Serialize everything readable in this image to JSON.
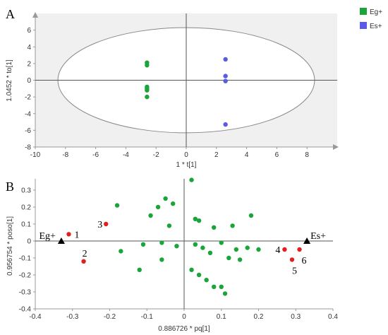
{
  "chart_data": [
    {
      "type": "scatter",
      "panel_label": "A",
      "xlabel": "1 * t[1]",
      "ylabel": "1.0452 * to[1]",
      "xlim": [
        -10,
        10
      ],
      "ylim": [
        -8,
        8
      ],
      "xticks": [
        "-10",
        "-8",
        "-6",
        "-4",
        "-2",
        "0",
        "2",
        "4",
        "6",
        "8"
      ],
      "yticks": [
        "6",
        "4",
        "2",
        "0",
        "-2",
        "-4",
        "-6",
        "-8"
      ],
      "ellipse": {
        "rx": 8.5,
        "ry": 6.3
      },
      "legend_position": "top-right",
      "series": [
        {
          "name": "Eg+",
          "color": "#1aa53a",
          "points": [
            [
              -2.6,
              2.1
            ],
            [
              -2.6,
              1.8
            ],
            [
              -2.6,
              -0.8
            ],
            [
              -2.6,
              -1.0
            ],
            [
              -2.6,
              -1.2
            ],
            [
              -2.6,
              -2.0
            ]
          ]
        },
        {
          "name": "Es+",
          "color": "#5a5ae6",
          "points": [
            [
              2.6,
              2.5
            ],
            [
              2.6,
              0.5
            ],
            [
              2.6,
              -0.1
            ],
            [
              2.6,
              -5.3
            ]
          ]
        }
      ]
    },
    {
      "type": "scatter",
      "panel_label": "B",
      "xlabel": "0.886726 * pq[1]",
      "ylabel": "0.956754 * poso[1]",
      "xlim": [
        -0.4,
        0.4
      ],
      "ylim": [
        -0.4,
        0.35
      ],
      "xticks": [
        "-0.4",
        "-0.3",
        "-0.2",
        "-0.1",
        "0",
        "0.1",
        "0.2",
        "0.3",
        "0.4"
      ],
      "yticks": [
        "0.3",
        "0.2",
        "0.1",
        "0",
        "-0.1",
        "-0.2",
        "-0.3",
        "-0.4"
      ],
      "anchors": [
        {
          "label": "Eg+",
          "x": -0.33,
          "y": 0.0
        },
        {
          "label": "Es+",
          "x": 0.33,
          "y": 0.0
        }
      ],
      "series": [
        {
          "color": "#1aa53a",
          "points": [
            [
              0.02,
              0.36
            ],
            [
              -0.18,
              0.21
            ],
            [
              -0.07,
              0.2
            ],
            [
              -0.05,
              0.25
            ],
            [
              -0.03,
              0.22
            ],
            [
              -0.09,
              0.15
            ],
            [
              -0.04,
              0.09
            ],
            [
              0.03,
              0.13
            ],
            [
              0.04,
              0.12
            ],
            [
              0.08,
              0.08
            ],
            [
              0.18,
              0.15
            ],
            [
              0.13,
              0.09
            ],
            [
              -0.17,
              -0.06
            ],
            [
              -0.11,
              -0.02
            ],
            [
              -0.06,
              -0.01
            ],
            [
              -0.02,
              -0.03
            ],
            [
              0.03,
              -0.02
            ],
            [
              0.05,
              -0.04
            ],
            [
              0.1,
              -0.01
            ],
            [
              0.07,
              -0.07
            ],
            [
              0.12,
              -0.1
            ],
            [
              0.15,
              -0.11
            ],
            [
              0.14,
              -0.05
            ],
            [
              0.17,
              -0.04
            ],
            [
              0.2,
              -0.05
            ],
            [
              -0.06,
              -0.11
            ],
            [
              -0.12,
              -0.17
            ],
            [
              0.04,
              -0.2
            ],
            [
              0.06,
              -0.23
            ],
            [
              0.08,
              -0.27
            ],
            [
              0.1,
              -0.27
            ],
            [
              0.11,
              -0.31
            ],
            [
              0.02,
              -0.17
            ]
          ]
        },
        {
          "color": "#e02020",
          "points": [
            [
              -0.31,
              0.04
            ],
            [
              -0.21,
              0.1
            ],
            [
              -0.27,
              -0.12
            ],
            [
              0.27,
              -0.05
            ],
            [
              0.29,
              -0.11
            ],
            [
              0.31,
              -0.05
            ]
          ],
          "labels": [
            "1",
            "3",
            "2",
            "4",
            "5",
            "6"
          ]
        }
      ]
    }
  ],
  "legend": {
    "items": [
      {
        "label": "Eg+",
        "color": "#1aa53a"
      },
      {
        "label": "Es+",
        "color": "#5a5ae6"
      }
    ]
  }
}
